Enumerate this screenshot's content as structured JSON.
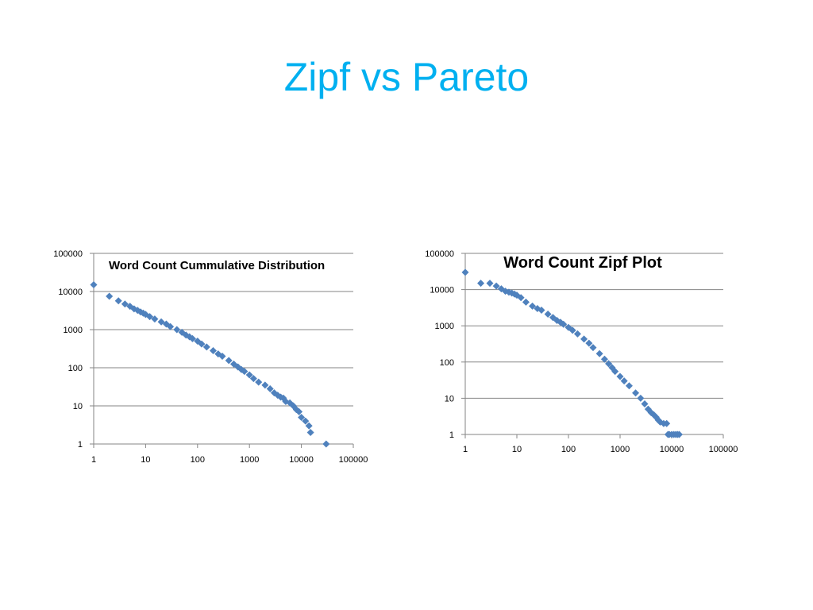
{
  "slide": {
    "title": "Zipf vs Pareto"
  },
  "colors": {
    "title": "#00b0f0",
    "marker": "#4f81bd",
    "grid": "#868686"
  },
  "chart_data": [
    {
      "type": "scatter",
      "title": "Word Count Cummulative Distribution",
      "xlabel": "",
      "ylabel": "",
      "xscale": "log",
      "yscale": "log",
      "xlim": [
        1,
        100000
      ],
      "ylim": [
        1,
        100000
      ],
      "xticks": [
        "1",
        "10",
        "100",
        "1000",
        "10000",
        "100000"
      ],
      "yticks": [
        "1",
        "10",
        "100",
        "1000",
        "10000",
        "100000"
      ],
      "grid": true,
      "legend": "none",
      "marker": "diamond",
      "series": [
        {
          "points": [
            [
              1,
              15000
            ],
            [
              2,
              7500
            ],
            [
              3,
              5700
            ],
            [
              4,
              4700
            ],
            [
              5,
              4100
            ],
            [
              6,
              3500
            ],
            [
              7,
              3200
            ],
            [
              8,
              2900
            ],
            [
              9,
              2700
            ],
            [
              10,
              2500
            ],
            [
              12,
              2200
            ],
            [
              15,
              1900
            ],
            [
              20,
              1600
            ],
            [
              25,
              1400
            ],
            [
              30,
              1200
            ],
            [
              40,
              1000
            ],
            [
              50,
              850
            ],
            [
              60,
              720
            ],
            [
              70,
              650
            ],
            [
              80,
              580
            ],
            [
              100,
              500
            ],
            [
              120,
              420
            ],
            [
              150,
              350
            ],
            [
              200,
              280
            ],
            [
              250,
              230
            ],
            [
              300,
              200
            ],
            [
              400,
              155
            ],
            [
              500,
              125
            ],
            [
              600,
              105
            ],
            [
              700,
              90
            ],
            [
              800,
              80
            ],
            [
              1000,
              65
            ],
            [
              1200,
              52
            ],
            [
              1500,
              42
            ],
            [
              2000,
              35
            ],
            [
              2500,
              28
            ],
            [
              3000,
              22
            ],
            [
              3500,
              19
            ],
            [
              4000,
              17
            ],
            [
              4500,
              16
            ],
            [
              5000,
              13
            ],
            [
              6000,
              12
            ],
            [
              7000,
              10
            ],
            [
              8000,
              8
            ],
            [
              9000,
              7
            ],
            [
              10000,
              5
            ],
            [
              12000,
              4
            ],
            [
              14000,
              3
            ],
            [
              15000,
              2
            ],
            [
              30000,
              1
            ]
          ]
        }
      ]
    },
    {
      "type": "scatter",
      "title": "Word Count Zipf Plot",
      "xlabel": "",
      "ylabel": "",
      "xscale": "log",
      "yscale": "log",
      "xlim": [
        1,
        100000
      ],
      "ylim": [
        1,
        100000
      ],
      "xticks": [
        "1",
        "10",
        "100",
        "1000",
        "10000",
        "100000"
      ],
      "yticks": [
        "1",
        "10",
        "100",
        "1000",
        "10000",
        "100000"
      ],
      "grid": true,
      "legend": "none",
      "marker": "diamond",
      "series": [
        {
          "points": [
            [
              1,
              30000
            ],
            [
              2,
              15000
            ],
            [
              3,
              15000
            ],
            [
              4,
              12500
            ],
            [
              5,
              10500
            ],
            [
              6,
              9000
            ],
            [
              7,
              8500
            ],
            [
              8,
              8000
            ],
            [
              9,
              7500
            ],
            [
              10,
              7000
            ],
            [
              12,
              6000
            ],
            [
              15,
              4500
            ],
            [
              20,
              3500
            ],
            [
              25,
              3000
            ],
            [
              30,
              2700
            ],
            [
              40,
              2100
            ],
            [
              50,
              1700
            ],
            [
              60,
              1400
            ],
            [
              70,
              1250
            ],
            [
              80,
              1100
            ],
            [
              100,
              900
            ],
            [
              120,
              750
            ],
            [
              150,
              600
            ],
            [
              200,
              430
            ],
            [
              250,
              330
            ],
            [
              300,
              250
            ],
            [
              400,
              170
            ],
            [
              500,
              120
            ],
            [
              600,
              90
            ],
            [
              700,
              70
            ],
            [
              800,
              55
            ],
            [
              1000,
              40
            ],
            [
              1200,
              30
            ],
            [
              1500,
              22
            ],
            [
              2000,
              14
            ],
            [
              2500,
              10
            ],
            [
              3000,
              7
            ],
            [
              3500,
              5
            ],
            [
              4000,
              4
            ],
            [
              4500,
              3.5
            ],
            [
              5000,
              3
            ],
            [
              5500,
              2.5
            ],
            [
              6000,
              2.2
            ],
            [
              7000,
              2
            ],
            [
              8000,
              2
            ],
            [
              8500,
              1
            ],
            [
              9000,
              1
            ],
            [
              10000,
              1
            ],
            [
              11000,
              1
            ],
            [
              12000,
              1
            ],
            [
              13000,
              1
            ],
            [
              14000,
              1
            ]
          ]
        }
      ]
    }
  ]
}
